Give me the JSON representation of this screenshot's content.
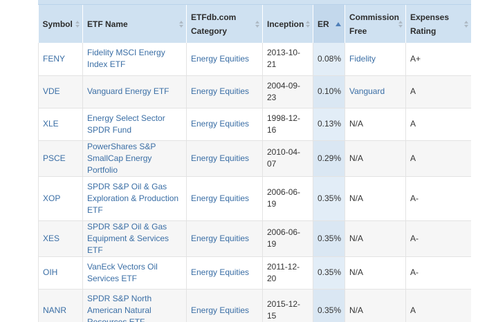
{
  "table": {
    "headers": {
      "symbol": "Symbol",
      "etf_name": "ETF Name",
      "category_line1": "ETFdb.com",
      "category_line2": "Category",
      "inception": "Inception",
      "er": "ER",
      "commission_line1": "Commission",
      "commission_line2": "Free",
      "expenses_line1": "Expenses",
      "expenses_line2": "Rating"
    },
    "rows": [
      {
        "symbol": "FENY",
        "name_lines": [
          "Fidelity MSCI Energy",
          "Index ETF"
        ],
        "category": "Energy Equities",
        "inception_lines": [
          "2013-10-21"
        ],
        "er": "0.08%",
        "commission": "Fidelity",
        "commission_link": true,
        "rating": "A+"
      },
      {
        "symbol": "VDE",
        "name_lines": [
          "Vanguard Energy ETF"
        ],
        "category": "Energy Equities",
        "inception_lines": [
          "2004-09-",
          "23"
        ],
        "er": "0.10%",
        "commission": "Vanguard",
        "commission_link": true,
        "rating": "A"
      },
      {
        "symbol": "XLE",
        "name_lines": [
          "Energy Select Sector",
          "SPDR Fund"
        ],
        "category": "Energy Equities",
        "inception_lines": [
          "1998-12-16"
        ],
        "er": "0.13%",
        "commission": "N/A",
        "commission_link": false,
        "rating": "A"
      },
      {
        "symbol": "PSCE",
        "name_lines": [
          "PowerShares S&P",
          "SmallCap Energy Portfolio"
        ],
        "category": "Energy Equities",
        "inception_lines": [
          "2010-04-",
          "07"
        ],
        "er": "0.29%",
        "commission": "N/A",
        "commission_link": false,
        "rating": "A"
      },
      {
        "symbol": "XOP",
        "name_lines": [
          "SPDR S&P Oil & Gas",
          "Exploration & Production",
          "ETF"
        ],
        "category": "Energy Equities",
        "inception_lines": [
          "2006-06-",
          "19"
        ],
        "er": "0.35%",
        "commission": "N/A",
        "commission_link": false,
        "rating": "A-"
      },
      {
        "symbol": "XES",
        "name_lines": [
          "SPDR S&P Oil & Gas",
          "Equipment & Services ETF"
        ],
        "category": "Energy Equities",
        "inception_lines": [
          "2006-06-",
          "19"
        ],
        "er": "0.35%",
        "commission": "N/A",
        "commission_link": false,
        "rating": "A-"
      },
      {
        "symbol": "OIH",
        "name_lines": [
          "VanEck Vectors Oil",
          "Services ETF"
        ],
        "category": "Energy Equities",
        "inception_lines": [
          "2011-12-20"
        ],
        "er": "0.35%",
        "commission": "N/A",
        "commission_link": false,
        "rating": "A-"
      },
      {
        "symbol": "NANR",
        "name_lines": [
          "SPDR S&P North",
          "American Natural",
          "Resources ETF"
        ],
        "category": "Energy Equities",
        "inception_lines": [
          "2015-12-15"
        ],
        "er": "0.35%",
        "commission": "N/A",
        "commission_link": false,
        "rating": "A"
      }
    ]
  },
  "colors": {
    "header_bg": "#cfe1f1",
    "er_col_bg": "#e2edf7",
    "link": "#3a6ea5"
  }
}
